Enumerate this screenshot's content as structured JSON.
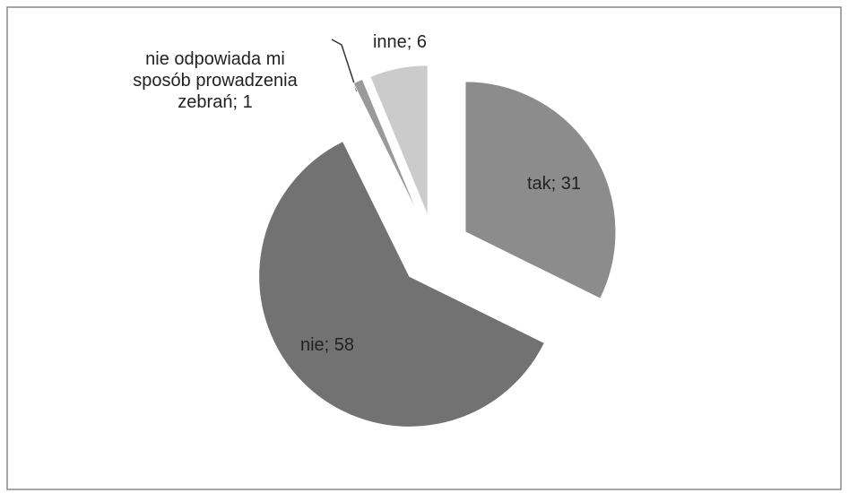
{
  "chart_data": {
    "type": "pie",
    "values": [
      31,
      58,
      1,
      6
    ],
    "value_labels": [
      "tak; 31",
      "nie; 58",
      "nie odpowiada mi sposób prowadzenia zebrań; 1",
      "inne; 6"
    ],
    "colors": [
      "#8c8c8c",
      "#727272",
      "#9a9a9a",
      "#cbcbcb"
    ]
  }
}
